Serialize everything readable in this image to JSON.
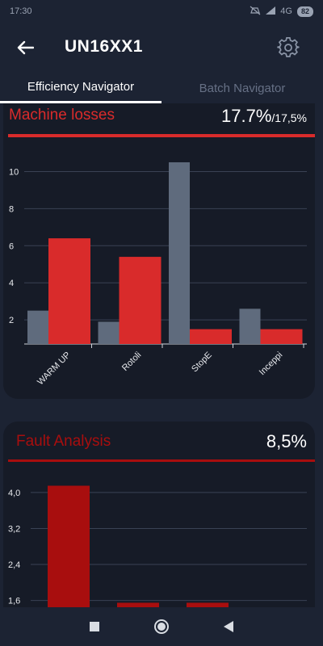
{
  "status": {
    "time": "17:30",
    "network": "4G",
    "battery": "82"
  },
  "header": {
    "title": "UN16XX1"
  },
  "tabs": [
    {
      "label": "Efficiency Navigator",
      "active": true
    },
    {
      "label": "Batch Navigator",
      "active": false
    }
  ],
  "machine_losses": {
    "title": "Machine losses",
    "value": "17.7%",
    "target": "/17,5%"
  },
  "fault_analysis": {
    "title": "Fault Analysis",
    "value": "8,5%"
  },
  "colors": {
    "accent_red": "#d92b2b",
    "dark_red": "#a80e0e",
    "gray_bar": "#5f6b7d",
    "background": "#1c2333"
  },
  "chart_data": [
    {
      "type": "bar",
      "categories": [
        "WARM UP",
        "Rotoli",
        "StopE",
        "Inceppi"
      ],
      "series": [
        {
          "values": [
            2.5,
            1.9,
            10.5,
            2.6
          ],
          "color": "#5f6b7d"
        },
        {
          "values": [
            6.4,
            5.4,
            1.5,
            1.5
          ],
          "color": "#d92b2b"
        }
      ],
      "yticks": [
        2,
        4,
        6,
        8,
        10
      ],
      "ylim": [
        0.7,
        11.5
      ],
      "grid": true
    },
    {
      "type": "bar",
      "categories": [
        "",
        "",
        ""
      ],
      "series": [
        {
          "values": [
            4.15,
            1.55,
            1.55
          ],
          "color": "#a80e0e"
        }
      ],
      "yticks": [
        "4,0",
        "3,2",
        "2,4",
        "1,6"
      ],
      "ytick_values": [
        4.0,
        3.2,
        2.4,
        1.6
      ],
      "ylim": [
        1.45,
        4.5
      ],
      "grid": true
    }
  ]
}
